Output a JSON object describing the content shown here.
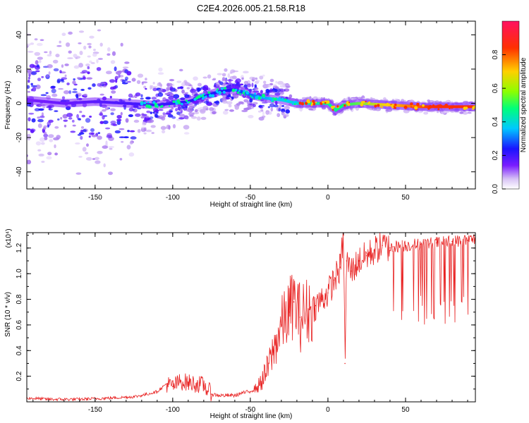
{
  "figure_title": "C2E4.2026.005.21.58.R18",
  "colors": {
    "snr_line": "#e82020",
    "ridge": "#1a14ff",
    "background": "#ffffff",
    "frame": "#000000"
  },
  "chart_data": [
    {
      "type": "heatmap",
      "id": "spectrogram",
      "title": "C2E4.2026.005.21.58.R18",
      "xlabel": "Height of straight line (km)",
      "ylabel": "Frequency (Hz)",
      "xlim": [
        -194,
        95
      ],
      "ylim": [
        -50,
        48
      ],
      "x_ticks": [
        -150,
        -100,
        -50,
        0,
        50
      ],
      "y_ticks": [
        -40,
        -20,
        0,
        20,
        40
      ],
      "x_tick_labels": [
        "-150",
        "-100",
        "-50",
        "0",
        "50"
      ],
      "y_tick_labels": [
        "-40",
        "-20",
        "0",
        "20",
        "40"
      ],
      "ridge": {
        "x": [
          -194,
          -170,
          -150,
          -130,
          -110,
          -100,
          -90,
          -80,
          -70,
          -60,
          -50,
          -40,
          -30,
          -25,
          -20,
          -10,
          0,
          5,
          10,
          20,
          40,
          60,
          80,
          95
        ],
        "y": [
          2,
          0,
          1,
          0,
          -1,
          0,
          1,
          4,
          7,
          8,
          5,
          3,
          2,
          1,
          0,
          0,
          0,
          -4,
          -1,
          0,
          -1,
          -2,
          -2,
          -2
        ]
      },
      "colorbar": {
        "label": "Normalized spectral amplitude",
        "range": [
          0,
          1
        ],
        "ticks": [
          0.0,
          0.2,
          0.4,
          0.6,
          0.8
        ],
        "tick_labels": [
          "0.0",
          "0.2",
          "0.4",
          "0.6",
          "0.8"
        ],
        "colormap": [
          "#ffffff",
          "#d7c2f5",
          "#7a1dff",
          "#1a14ff",
          "#00c8ff",
          "#00ff7a",
          "#8cff00",
          "#ffd000",
          "#ff3000",
          "#ff1060"
        ]
      }
    },
    {
      "type": "line",
      "id": "snr",
      "xlabel": "Height of straight line (km)",
      "ylabel": "SNR (10 * v/v)",
      "scale_label": "(x10⁴)",
      "xlim": [
        -194,
        95
      ],
      "ylim": [
        0,
        1.32
      ],
      "x_ticks": [
        -150,
        -100,
        -50,
        0,
        50
      ],
      "y_ticks": [
        0.2,
        0.4,
        0.6,
        0.8,
        1.0,
        1.2
      ],
      "x_tick_labels": [
        "-150",
        "-100",
        "-50",
        "0",
        "50"
      ],
      "y_tick_labels": [
        "0.2",
        "0.4",
        "0.6",
        "0.8",
        "1.0",
        "1.2"
      ],
      "series": [
        {
          "name": "SNR",
          "color": "#e82020",
          "x": [
            -194,
            -180,
            -160,
            -140,
            -125,
            -120,
            -110,
            -104,
            -100,
            -95,
            -90,
            -85,
            -80,
            -75,
            -70,
            -65,
            -60,
            -55,
            -50,
            -45,
            -40,
            -35,
            -30,
            -25,
            -22,
            -18,
            -12,
            -8,
            -4,
            0,
            4,
            8,
            10,
            11,
            12,
            15,
            20,
            25,
            30,
            35,
            40,
            42,
            50,
            60,
            70,
            80,
            90,
            95
          ],
          "values": [
            0.03,
            0.02,
            0.02,
            0.03,
            0.04,
            0.05,
            0.08,
            0.14,
            0.12,
            0.16,
            0.15,
            0.14,
            0.13,
            0.06,
            0.05,
            0.05,
            0.05,
            0.07,
            0.08,
            0.12,
            0.22,
            0.4,
            0.6,
            0.7,
            0.78,
            0.66,
            0.72,
            0.75,
            0.8,
            0.85,
            0.95,
            1.05,
            1.3,
            0.3,
            1.1,
            1.02,
            1.1,
            1.14,
            1.18,
            1.22,
            1.2,
            1.21,
            1.22,
            1.23,
            1.24,
            1.25,
            1.26,
            1.27
          ]
        }
      ]
    }
  ]
}
